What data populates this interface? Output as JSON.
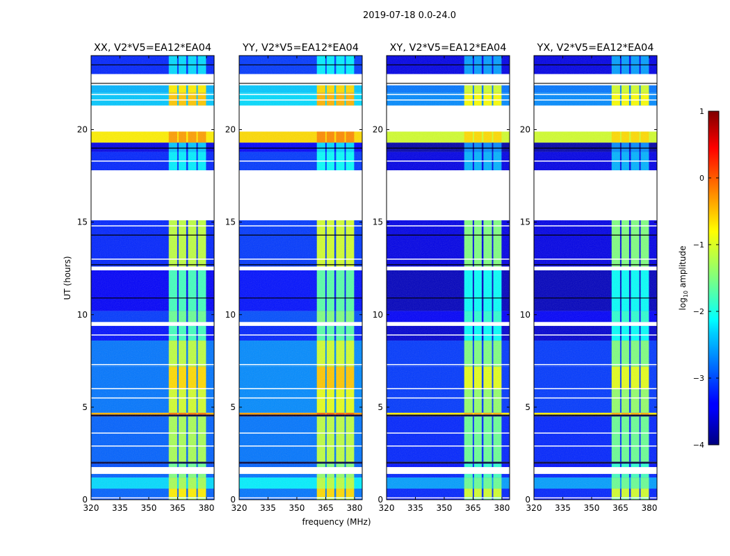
{
  "chart_data": {
    "type": "heatmap",
    "title": "2019-07-18 0.0-24.0",
    "xlabel": "frequency (MHz)",
    "ylabel": "UT (hours)",
    "xlim": [
      320,
      384
    ],
    "ylim": [
      0,
      24
    ],
    "xticks": [
      320,
      335,
      350,
      365,
      380
    ],
    "yticks": [
      0,
      5,
      10,
      15,
      20
    ],
    "panels": [
      {
        "title": "XX, V2*V5=EA12*EA04",
        "offset": 0.0
      },
      {
        "title": "YY, V2*V5=EA12*EA04",
        "offset": 0.1
      },
      {
        "title": "XY, V2*V5=EA12*EA04",
        "offset": -0.3
      },
      {
        "title": "YX, V2*V5=EA12*EA04",
        "offset": -0.3
      }
    ],
    "rfi_channels_mhz": [
      [
        360.4,
        364.8
      ],
      [
        365.5,
        369.5
      ],
      [
        370.4,
        374.8
      ],
      [
        375.5,
        379.8
      ]
    ],
    "time_bands": [
      {
        "t": [
          0,
          0.15
        ],
        "bg": -3.0,
        "rfi": -1.3
      },
      {
        "t": [
          0.15,
          0.6
        ],
        "bg": -2.9,
        "rfi": -0.8
      },
      {
        "t": [
          0.6,
          1.2
        ],
        "bg": -2.3,
        "rfi": -1.3
      },
      {
        "t": [
          1.2,
          1.4
        ],
        "bg": -2.9,
        "rfi": -1.5
      },
      {
        "t": [
          1.4,
          1.76
        ],
        "flag": true
      },
      {
        "t": [
          1.76,
          1.95
        ],
        "bg": -3.0,
        "rfi": -1.6
      },
      {
        "t": [
          1.95,
          2.05
        ],
        "black": true
      },
      {
        "t": [
          2.05,
          4.5
        ],
        "bg": -2.9,
        "rfi": -1.3
      },
      {
        "t": [
          4.5,
          4.6
        ],
        "black": true
      },
      {
        "t": [
          4.6,
          4.7
        ],
        "bg": -0.5,
        "rfi": -0.2
      },
      {
        "t": [
          4.7,
          6.0
        ],
        "bg": -2.8,
        "rfi": -1.1
      },
      {
        "t": [
          6.0,
          7.2
        ],
        "bg": -2.8,
        "rfi": -0.7
      },
      {
        "t": [
          7.2,
          8.6
        ],
        "bg": -2.8,
        "rfi": -1.2
      },
      {
        "t": [
          8.6,
          9.4
        ],
        "bg": -3.3,
        "rfi": -1.8
      },
      {
        "t": [
          9.4,
          9.6
        ],
        "flag": true
      },
      {
        "t": [
          9.6,
          10.2
        ],
        "bg": -3.1,
        "rfi": -1.6
      },
      {
        "t": [
          10.2,
          12.4
        ],
        "bg": -3.4,
        "rfi": -1.8
      },
      {
        "t": [
          12.4,
          12.6
        ],
        "flag": true
      },
      {
        "t": [
          12.6,
          15.1
        ],
        "bg": -3.2,
        "rfi": -1.2
      },
      {
        "t": [
          15.1,
          17.8
        ],
        "flag": true
      },
      {
        "t": [
          17.8,
          18.8
        ],
        "bg": -3.2,
        "rfi": -2.2
      },
      {
        "t": [
          18.8,
          19.3
        ],
        "bg": -3.5,
        "rfi": -2.4
      },
      {
        "t": [
          19.3,
          19.9
        ],
        "bg": -0.8,
        "rfi": -0.4
      },
      {
        "t": [
          19.9,
          21.3
        ],
        "flag": true
      },
      {
        "t": [
          21.3,
          22.0
        ],
        "bg": -2.4,
        "rfi": -0.6
      },
      {
        "t": [
          22.0,
          22.4
        ],
        "bg": -2.5,
        "rfi": -0.8
      },
      {
        "t": [
          22.4,
          23.0
        ],
        "flag": true
      },
      {
        "t": [
          23.0,
          24.0
        ],
        "bg": -3.2,
        "rfi": -2.3
      }
    ],
    "flag_lines": [
      0.1,
      2.9,
      3.6,
      5.5,
      6.0,
      7.3,
      8.9,
      13.0,
      14.8,
      18.3,
      21.6,
      21.9
    ],
    "black_lines": [
      10.9,
      12.7,
      14.3,
      19.0,
      22.5,
      23.5
    ],
    "colorbar": {
      "label": "log10 amplitude",
      "label_main": "log",
      "label_sub": "10",
      "label_rest": " amplitude",
      "range": [
        -4,
        1
      ],
      "ticks": [
        "1",
        "0",
        "−1",
        "−2",
        "−3",
        "−4"
      ],
      "tick_values": [
        1,
        0,
        -1,
        -2,
        -3,
        -4
      ],
      "colormap": "jet"
    }
  }
}
